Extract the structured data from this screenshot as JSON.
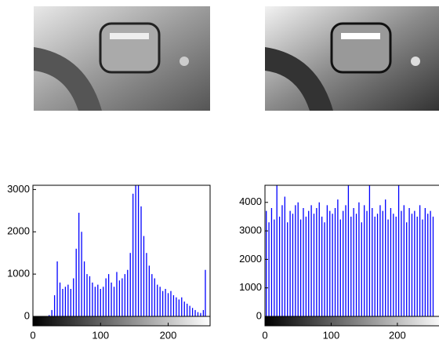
{
  "chart_data": [
    {
      "type": "stem",
      "color": "#0000ff",
      "xlim": [
        0,
        262
      ],
      "ylim": [
        0,
        3100
      ],
      "xticks": [
        0,
        100,
        200
      ],
      "yticks": [
        0,
        1000,
        2000,
        3000
      ],
      "x": [
        0,
        4,
        8,
        12,
        16,
        20,
        24,
        28,
        32,
        36,
        40,
        44,
        48,
        52,
        56,
        60,
        64,
        68,
        72,
        76,
        80,
        84,
        88,
        92,
        96,
        100,
        104,
        108,
        112,
        116,
        120,
        124,
        128,
        132,
        136,
        140,
        144,
        148,
        152,
        156,
        160,
        164,
        168,
        172,
        176,
        180,
        184,
        188,
        192,
        196,
        200,
        204,
        208,
        212,
        216,
        220,
        224,
        228,
        232,
        236,
        240,
        244,
        248,
        252,
        255
      ],
      "values": [
        0,
        0,
        0,
        0,
        0,
        0,
        30,
        150,
        500,
        1300,
        800,
        650,
        700,
        750,
        650,
        900,
        1600,
        2450,
        2000,
        1300,
        1000,
        950,
        800,
        700,
        750,
        650,
        700,
        900,
        1000,
        800,
        700,
        1050,
        850,
        900,
        1000,
        1100,
        1500,
        2900,
        3100,
        3100,
        2600,
        1900,
        1500,
        1200,
        1000,
        900,
        750,
        700,
        600,
        650,
        550,
        600,
        500,
        450,
        400,
        450,
        350,
        300,
        250,
        200,
        150,
        100,
        80,
        150,
        1100
      ]
    },
    {
      "type": "stem",
      "color": "#0000ff",
      "xlim": [
        0,
        270
      ],
      "ylim": [
        0,
        4600
      ],
      "xticks": [
        0,
        100,
        200
      ],
      "yticks": [
        0,
        1000,
        2000,
        3000,
        4000
      ],
      "x": [
        2,
        6,
        10,
        14,
        18,
        22,
        26,
        30,
        34,
        38,
        42,
        46,
        50,
        54,
        58,
        62,
        66,
        70,
        74,
        78,
        82,
        86,
        90,
        94,
        98,
        102,
        106,
        110,
        114,
        118,
        122,
        126,
        130,
        134,
        138,
        142,
        146,
        150,
        154,
        158,
        162,
        166,
        170,
        174,
        178,
        182,
        186,
        190,
        194,
        198,
        202,
        206,
        210,
        214,
        218,
        222,
        226,
        230,
        234,
        238,
        242,
        246,
        250,
        254
      ],
      "values": [
        3700,
        3300,
        3800,
        3400,
        4600,
        3500,
        3900,
        4200,
        3300,
        3700,
        3600,
        3900,
        4000,
        3400,
        3800,
        3500,
        3700,
        3900,
        3600,
        3800,
        4000,
        3500,
        3300,
        3900,
        3700,
        3600,
        3800,
        4100,
        3400,
        3700,
        3900,
        4600,
        3500,
        3800,
        3600,
        4000,
        3300,
        3900,
        3700,
        4600,
        3800,
        3500,
        3600,
        3900,
        3700,
        4100,
        3400,
        3800,
        3600,
        3500,
        4600,
        3700,
        3900,
        3300,
        3800,
        3600,
        3700,
        3500,
        3900,
        3400,
        3800,
        3600,
        3700,
        3500
      ]
    }
  ]
}
